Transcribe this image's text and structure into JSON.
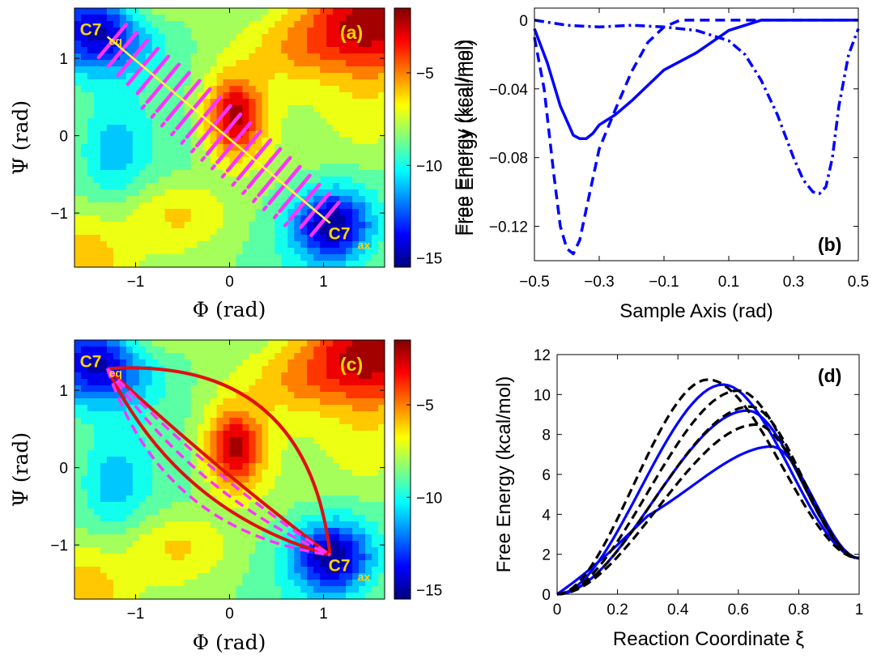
{
  "colormap": [
    "#00007f",
    "#0000ff",
    "#007fff",
    "#00ffff",
    "#7fff7f",
    "#ffff00",
    "#ff7f00",
    "#ff0000",
    "#7f0000"
  ],
  "chart_data": [
    {
      "id": "a",
      "panel_label": "(a)",
      "type": "heatmap",
      "xlabel": "Φ (rad)",
      "ylabel": "Ψ (rad)",
      "xlim": [
        -1.65,
        1.65
      ],
      "ylim": [
        -1.7,
        1.65
      ],
      "xticks": [
        -1,
        0,
        1
      ],
      "yticks": [
        -1,
        0,
        1
      ],
      "colorbar": {
        "label": "Free Energy (kcal/mol)",
        "range": [
          -15.5,
          -1.5
        ],
        "ticks": [
          -5,
          -10,
          -15
        ],
        "tick_labels": [
          "−5",
          "−10",
          "−15"
        ]
      },
      "sites": [
        {
          "name": "C7",
          "sub": "eq",
          "phi": -1.3,
          "psi": 1.28
        },
        {
          "name": "C7",
          "sub": "ax",
          "phi": 1.07,
          "psi": -1.13
        }
      ],
      "path": {
        "color": "#ffff40",
        "points": [
          [
            -1.3,
            1.28
          ],
          [
            1.07,
            -1.13
          ]
        ]
      },
      "samples": {
        "color": "#ff33ff",
        "count": 22
      }
    },
    {
      "id": "b",
      "panel_label": "(b)",
      "type": "line",
      "xlabel": "Sample Axis (rad)",
      "ylabel": "Free Energy (kcal/mol)",
      "xlim": [
        -0.5,
        0.5
      ],
      "ylim": [
        -0.14,
        0.007
      ],
      "xticks": [
        -0.5,
        -0.3,
        -0.1,
        0.1,
        0.3,
        0.5
      ],
      "yticks": [
        0,
        -0.04,
        -0.08,
        -0.12
      ],
      "xtick_labels": [
        "−0.5",
        "−0.3",
        "−0.1",
        "0.1",
        "0.3",
        "0.5"
      ],
      "ytick_labels": [
        "0",
        "−0.04",
        "−0.08",
        "−0.12"
      ],
      "series": [
        {
          "style": "solid",
          "color": "#0000ff",
          "x": [
            -0.5,
            -0.46,
            -0.42,
            -0.38,
            -0.36,
            -0.34,
            -0.32,
            -0.3,
            -0.25,
            -0.2,
            -0.1,
            0,
            0.1,
            0.2,
            0.3,
            0.4,
            0.5
          ],
          "y": [
            -0.005,
            -0.025,
            -0.05,
            -0.067,
            -0.069,
            -0.069,
            -0.066,
            -0.061,
            -0.055,
            -0.047,
            -0.029,
            -0.019,
            -0.006,
            0,
            0,
            0,
            0
          ]
        },
        {
          "style": "dashed",
          "color": "#0000ff",
          "x": [
            -0.5,
            -0.47,
            -0.44,
            -0.42,
            -0.4,
            -0.38,
            -0.36,
            -0.34,
            -0.3,
            -0.25,
            -0.2,
            -0.15,
            -0.1,
            -0.05,
            0,
            0.05,
            0.1,
            0.2,
            0.5
          ],
          "y": [
            -0.01,
            -0.04,
            -0.09,
            -0.12,
            -0.133,
            -0.136,
            -0.128,
            -0.11,
            -0.075,
            -0.052,
            -0.03,
            -0.013,
            -0.004,
            0,
            0,
            0,
            0,
            0,
            0
          ]
        },
        {
          "style": "dashdot",
          "color": "#0000ff",
          "x": [
            -0.5,
            -0.4,
            -0.3,
            -0.2,
            -0.1,
            0,
            0.1,
            0.15,
            0.2,
            0.25,
            0.3,
            0.33,
            0.36,
            0.38,
            0.4,
            0.42,
            0.44,
            0.47,
            0.5
          ],
          "y": [
            0,
            -0.003,
            -0.004,
            -0.003,
            -0.004,
            -0.006,
            -0.012,
            -0.02,
            -0.035,
            -0.055,
            -0.08,
            -0.093,
            -0.1,
            -0.101,
            -0.097,
            -0.08,
            -0.05,
            -0.02,
            -0.005
          ]
        }
      ]
    },
    {
      "id": "c",
      "panel_label": "(c)",
      "type": "heatmap",
      "xlabel": "Φ (rad)",
      "ylabel": "Ψ (rad)",
      "xlim": [
        -1.65,
        1.65
      ],
      "ylim": [
        -1.7,
        1.65
      ],
      "xticks": [
        -1,
        0,
        1
      ],
      "yticks": [
        -1,
        0,
        1
      ],
      "colorbar": {
        "label": "",
        "range": [
          -15.5,
          -1.5
        ],
        "ticks": [
          -5,
          -10,
          -15
        ],
        "tick_labels": [
          "−5",
          "−10",
          "−15"
        ]
      },
      "sites": [
        {
          "name": "C7",
          "sub": "eq",
          "phi": -1.3,
          "psi": 1.28
        },
        {
          "name": "C7",
          "sub": "ax",
          "phi": 1.07,
          "psi": -1.13
        }
      ],
      "paths": [
        {
          "style": "solid",
          "color": "#e01010",
          "bend": -0.95
        },
        {
          "style": "solid",
          "color": "#e01010",
          "bend": 0.45
        },
        {
          "style": "solid",
          "color": "#e01010",
          "bend": 0.05
        },
        {
          "style": "dashed",
          "color": "#ff33ff",
          "bend": 0.62
        },
        {
          "style": "dashed",
          "color": "#ff33ff",
          "bend": 0.28
        },
        {
          "style": "dashed",
          "color": "#ff33ff",
          "bend": 0.12
        }
      ]
    },
    {
      "id": "d",
      "panel_label": "(d)",
      "type": "line",
      "xlabel": "Reaction Coordinate ξ",
      "ylabel": "Free Energy (kcal/mol)",
      "xlim": [
        0,
        1
      ],
      "ylim": [
        0,
        12
      ],
      "xticks": [
        0,
        0.2,
        0.4,
        0.6,
        0.8,
        1
      ],
      "yticks": [
        0,
        2,
        4,
        6,
        8,
        10,
        12
      ],
      "xtick_labels": [
        "0",
        "0.2",
        "0.4",
        "0.6",
        "0.8",
        "1"
      ],
      "ytick_labels": [
        "0",
        "2",
        "4",
        "6",
        "8",
        "10",
        "12"
      ],
      "series": [
        {
          "style": "solid",
          "color": "#0000ff",
          "peak_x": 0.55,
          "peak_y": 10.5
        },
        {
          "style": "solid",
          "color": "#0000ff",
          "peak_x": 0.63,
          "peak_y": 9.2
        },
        {
          "style": "solid",
          "color": "#0000ff",
          "peak_x": 0.71,
          "peak_y": 7.4,
          "shoulder": 3.5
        },
        {
          "style": "dashed",
          "color": "#000000",
          "peak_x": 0.5,
          "peak_y": 10.75
        },
        {
          "style": "dashed",
          "color": "#000000",
          "peak_x": 0.6,
          "peak_y": 10.2
        },
        {
          "style": "dashed",
          "color": "#000000",
          "peak_x": 0.64,
          "peak_y": 9.4
        },
        {
          "style": "dashed",
          "color": "#000000",
          "peak_x": 0.66,
          "peak_y": 8.5
        }
      ]
    }
  ]
}
